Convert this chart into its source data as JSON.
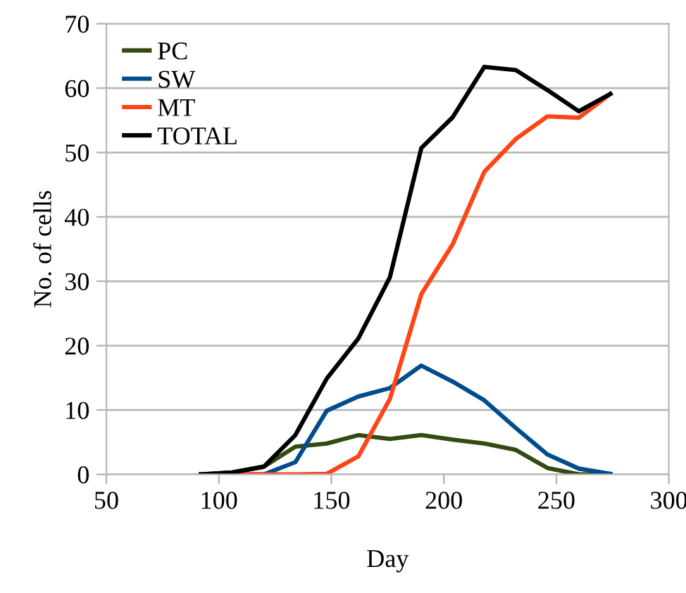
{
  "chart_data": {
    "type": "line",
    "xlabel": "Day",
    "ylabel": "No. of cells",
    "x": [
      92,
      106,
      120,
      134,
      148,
      162,
      176,
      190,
      204,
      218,
      232,
      246,
      260,
      274
    ],
    "series": [
      {
        "name": "PC",
        "color": "#334b10",
        "values": [
          0,
          0.3,
          1.2,
          4.3,
          4.8,
          6.1,
          5.5,
          6.1,
          5.4,
          4.8,
          3.8,
          1.0,
          0,
          0
        ]
      },
      {
        "name": "SW",
        "color": "#004c8c",
        "values": [
          0,
          0,
          0,
          1.9,
          9.9,
          12.1,
          13.4,
          16.9,
          14.4,
          11.5,
          7.2,
          3.1,
          0.9,
          0.1
        ]
      },
      {
        "name": "MT",
        "color": "#ff4415",
        "values": [
          0,
          0,
          0,
          0,
          0.1,
          2.8,
          11.7,
          28.0,
          35.8,
          47.0,
          52.1,
          55.6,
          55.4,
          59.1
        ]
      },
      {
        "name": "TOTAL",
        "color": "#000000",
        "values": [
          0,
          0.3,
          1.2,
          6.1,
          14.9,
          21.1,
          30.6,
          50.7,
          55.5,
          63.3,
          62.8,
          59.7,
          56.4,
          59.1
        ]
      }
    ],
    "xlim": [
      50,
      300
    ],
    "xticks": [
      50,
      100,
      150,
      200,
      250,
      300
    ],
    "ylim": [
      0,
      70
    ],
    "yticks": [
      0,
      10,
      20,
      30,
      40,
      50,
      60,
      70
    ],
    "grid": "y",
    "legend": "top left",
    "marker": "none",
    "line_style": "solid"
  }
}
